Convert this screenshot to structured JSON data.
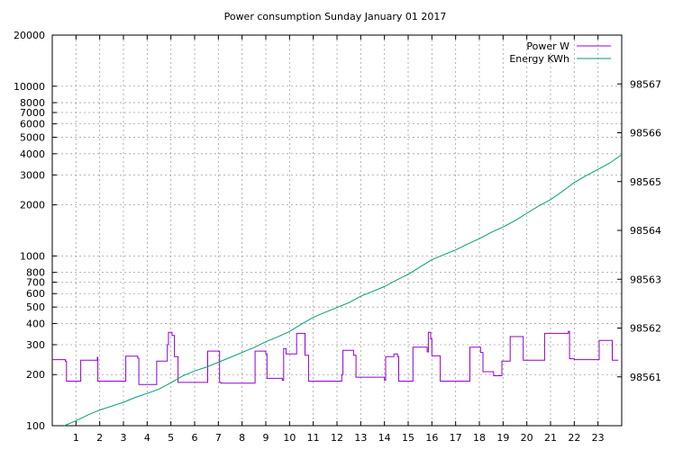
{
  "chart_data": {
    "type": "line",
    "title": "Power consumption Sunday January 01 2017",
    "xlabel": "",
    "ylabel": "",
    "y2label": "",
    "xlim": [
      0,
      24
    ],
    "ylim": [
      100,
      20000
    ],
    "y_scale": "log",
    "y2lim": [
      98560.0,
      98568.0
    ],
    "grid": true,
    "legend_position": "top-right",
    "x_ticks": [
      1,
      2,
      3,
      4,
      5,
      6,
      7,
      8,
      9,
      10,
      11,
      12,
      13,
      14,
      15,
      16,
      17,
      18,
      19,
      20,
      21,
      22,
      23
    ],
    "y_ticks": [
      {
        "value": 100,
        "label": "100"
      },
      {
        "value": 200,
        "label": "200"
      },
      {
        "value": 300,
        "label": "300"
      },
      {
        "value": 400,
        "label": "400"
      },
      {
        "value": 500,
        "label": "500"
      },
      {
        "value": 600,
        "label": "600"
      },
      {
        "value": 700,
        "label": "700"
      },
      {
        "value": 800,
        "label": "800"
      },
      {
        "value": 1000,
        "label": "1000"
      },
      {
        "value": 2000,
        "label": "2000"
      },
      {
        "value": 3000,
        "label": "3000"
      },
      {
        "value": 4000,
        "label": "4000"
      },
      {
        "value": 5000,
        "label": "5000"
      },
      {
        "value": 6000,
        "label": "6000"
      },
      {
        "value": 7000,
        "label": "7000"
      },
      {
        "value": 8000,
        "label": "8000"
      },
      {
        "value": 10000,
        "label": "10000"
      },
      {
        "value": 20000,
        "label": "20000"
      }
    ],
    "y2_ticks": [
      98561,
      98562,
      98563,
      98564,
      98565,
      98566,
      98567
    ],
    "series": [
      {
        "name": "Power W",
        "axis": "y",
        "color": "#9400d3",
        "points": [
          [
            0.0,
            245
          ],
          [
            0.55,
            245
          ],
          [
            0.55,
            240
          ],
          [
            0.6,
            240
          ],
          [
            0.6,
            183
          ],
          [
            1.2,
            183
          ],
          [
            1.2,
            243
          ],
          [
            1.9,
            243
          ],
          [
            1.9,
            253
          ],
          [
            1.92,
            253
          ],
          [
            1.92,
            183
          ],
          [
            3.1,
            183
          ],
          [
            3.1,
            257
          ],
          [
            3.6,
            257
          ],
          [
            3.6,
            250
          ],
          [
            3.65,
            250
          ],
          [
            3.65,
            175
          ],
          [
            4.4,
            175
          ],
          [
            4.4,
            240
          ],
          [
            4.85,
            240
          ],
          [
            4.85,
            300
          ],
          [
            4.9,
            300
          ],
          [
            4.9,
            355
          ],
          [
            5.05,
            355
          ],
          [
            5.05,
            340
          ],
          [
            5.15,
            340
          ],
          [
            5.15,
            255
          ],
          [
            5.3,
            255
          ],
          [
            5.3,
            180
          ],
          [
            6.55,
            180
          ],
          [
            6.55,
            275
          ],
          [
            7.05,
            275
          ],
          [
            7.05,
            180
          ],
          [
            7.1,
            180
          ],
          [
            7.1,
            178
          ],
          [
            8.55,
            178
          ],
          [
            8.55,
            275
          ],
          [
            9.0,
            275
          ],
          [
            9.0,
            265
          ],
          [
            9.05,
            265
          ],
          [
            9.05,
            190
          ],
          [
            9.7,
            190
          ],
          [
            9.7,
            185
          ],
          [
            9.75,
            185
          ],
          [
            9.75,
            285
          ],
          [
            9.85,
            285
          ],
          [
            9.85,
            265
          ],
          [
            10.3,
            265
          ],
          [
            10.3,
            350
          ],
          [
            10.65,
            350
          ],
          [
            10.65,
            260
          ],
          [
            10.8,
            260
          ],
          [
            10.8,
            183
          ],
          [
            12.2,
            183
          ],
          [
            12.2,
            200
          ],
          [
            12.25,
            200
          ],
          [
            12.25,
            278
          ],
          [
            12.7,
            278
          ],
          [
            12.7,
            260
          ],
          [
            12.8,
            260
          ],
          [
            12.8,
            193
          ],
          [
            14.0,
            193
          ],
          [
            14.0,
            185
          ],
          [
            14.05,
            185
          ],
          [
            14.05,
            255
          ],
          [
            14.4,
            255
          ],
          [
            14.4,
            265
          ],
          [
            14.55,
            265
          ],
          [
            14.55,
            255
          ],
          [
            14.6,
            255
          ],
          [
            14.6,
            183
          ],
          [
            15.2,
            183
          ],
          [
            15.2,
            290
          ],
          [
            15.8,
            290
          ],
          [
            15.8,
            272
          ],
          [
            15.85,
            272
          ],
          [
            15.85,
            355
          ],
          [
            15.95,
            355
          ],
          [
            15.95,
            325
          ],
          [
            16.0,
            325
          ],
          [
            16.0,
            258
          ],
          [
            16.35,
            258
          ],
          [
            16.35,
            183
          ],
          [
            17.6,
            183
          ],
          [
            17.6,
            290
          ],
          [
            18.05,
            290
          ],
          [
            18.05,
            270
          ],
          [
            18.15,
            270
          ],
          [
            18.15,
            208
          ],
          [
            18.6,
            208
          ],
          [
            18.6,
            197
          ],
          [
            18.95,
            197
          ],
          [
            18.95,
            240
          ],
          [
            19.3,
            240
          ],
          [
            19.3,
            335
          ],
          [
            19.85,
            335
          ],
          [
            19.85,
            243
          ],
          [
            20.75,
            243
          ],
          [
            20.75,
            350
          ],
          [
            21.75,
            350
          ],
          [
            21.75,
            360
          ],
          [
            21.8,
            360
          ],
          [
            21.8,
            248
          ],
          [
            22.0,
            248
          ],
          [
            22.0,
            245
          ],
          [
            23.05,
            245
          ],
          [
            23.05,
            318
          ],
          [
            23.6,
            318
          ],
          [
            23.6,
            243
          ],
          [
            23.85,
            243
          ]
        ]
      },
      {
        "name": "Energy KWh",
        "axis": "y2",
        "color": "#009e73",
        "points": [
          [
            0.5,
            98560.0
          ],
          [
            1.0,
            98560.1
          ],
          [
            1.5,
            98560.22
          ],
          [
            2.0,
            98560.32
          ],
          [
            2.5,
            98560.4
          ],
          [
            3.0,
            98560.48
          ],
          [
            3.5,
            98560.58
          ],
          [
            4.0,
            98560.66
          ],
          [
            4.5,
            98560.75
          ],
          [
            5.0,
            98560.88
          ],
          [
            5.5,
            98561.02
          ],
          [
            6.0,
            98561.12
          ],
          [
            6.5,
            98561.2
          ],
          [
            7.0,
            98561.3
          ],
          [
            7.5,
            98561.4
          ],
          [
            8.0,
            98561.5
          ],
          [
            8.5,
            98561.6
          ],
          [
            9.0,
            98561.72
          ],
          [
            9.5,
            98561.82
          ],
          [
            10.0,
            98561.93
          ],
          [
            10.5,
            98562.08
          ],
          [
            11.0,
            98562.22
          ],
          [
            11.5,
            98562.32
          ],
          [
            12.0,
            98562.42
          ],
          [
            12.5,
            98562.52
          ],
          [
            13.0,
            98562.65
          ],
          [
            13.5,
            98562.75
          ],
          [
            14.0,
            98562.85
          ],
          [
            14.5,
            98562.98
          ],
          [
            15.0,
            98563.1
          ],
          [
            15.5,
            98563.25
          ],
          [
            16.0,
            98563.4
          ],
          [
            16.5,
            98563.5
          ],
          [
            17.0,
            98563.6
          ],
          [
            17.5,
            98563.72
          ],
          [
            18.0,
            98563.83
          ],
          [
            18.5,
            98563.96
          ],
          [
            19.0,
            98564.07
          ],
          [
            19.5,
            98564.2
          ],
          [
            20.0,
            98564.35
          ],
          [
            20.5,
            98564.5
          ],
          [
            21.0,
            98564.63
          ],
          [
            21.5,
            98564.8
          ],
          [
            22.0,
            98564.98
          ],
          [
            22.5,
            98565.12
          ],
          [
            23.0,
            98565.25
          ],
          [
            23.5,
            98565.38
          ],
          [
            24.0,
            98565.55
          ]
        ]
      }
    ]
  }
}
